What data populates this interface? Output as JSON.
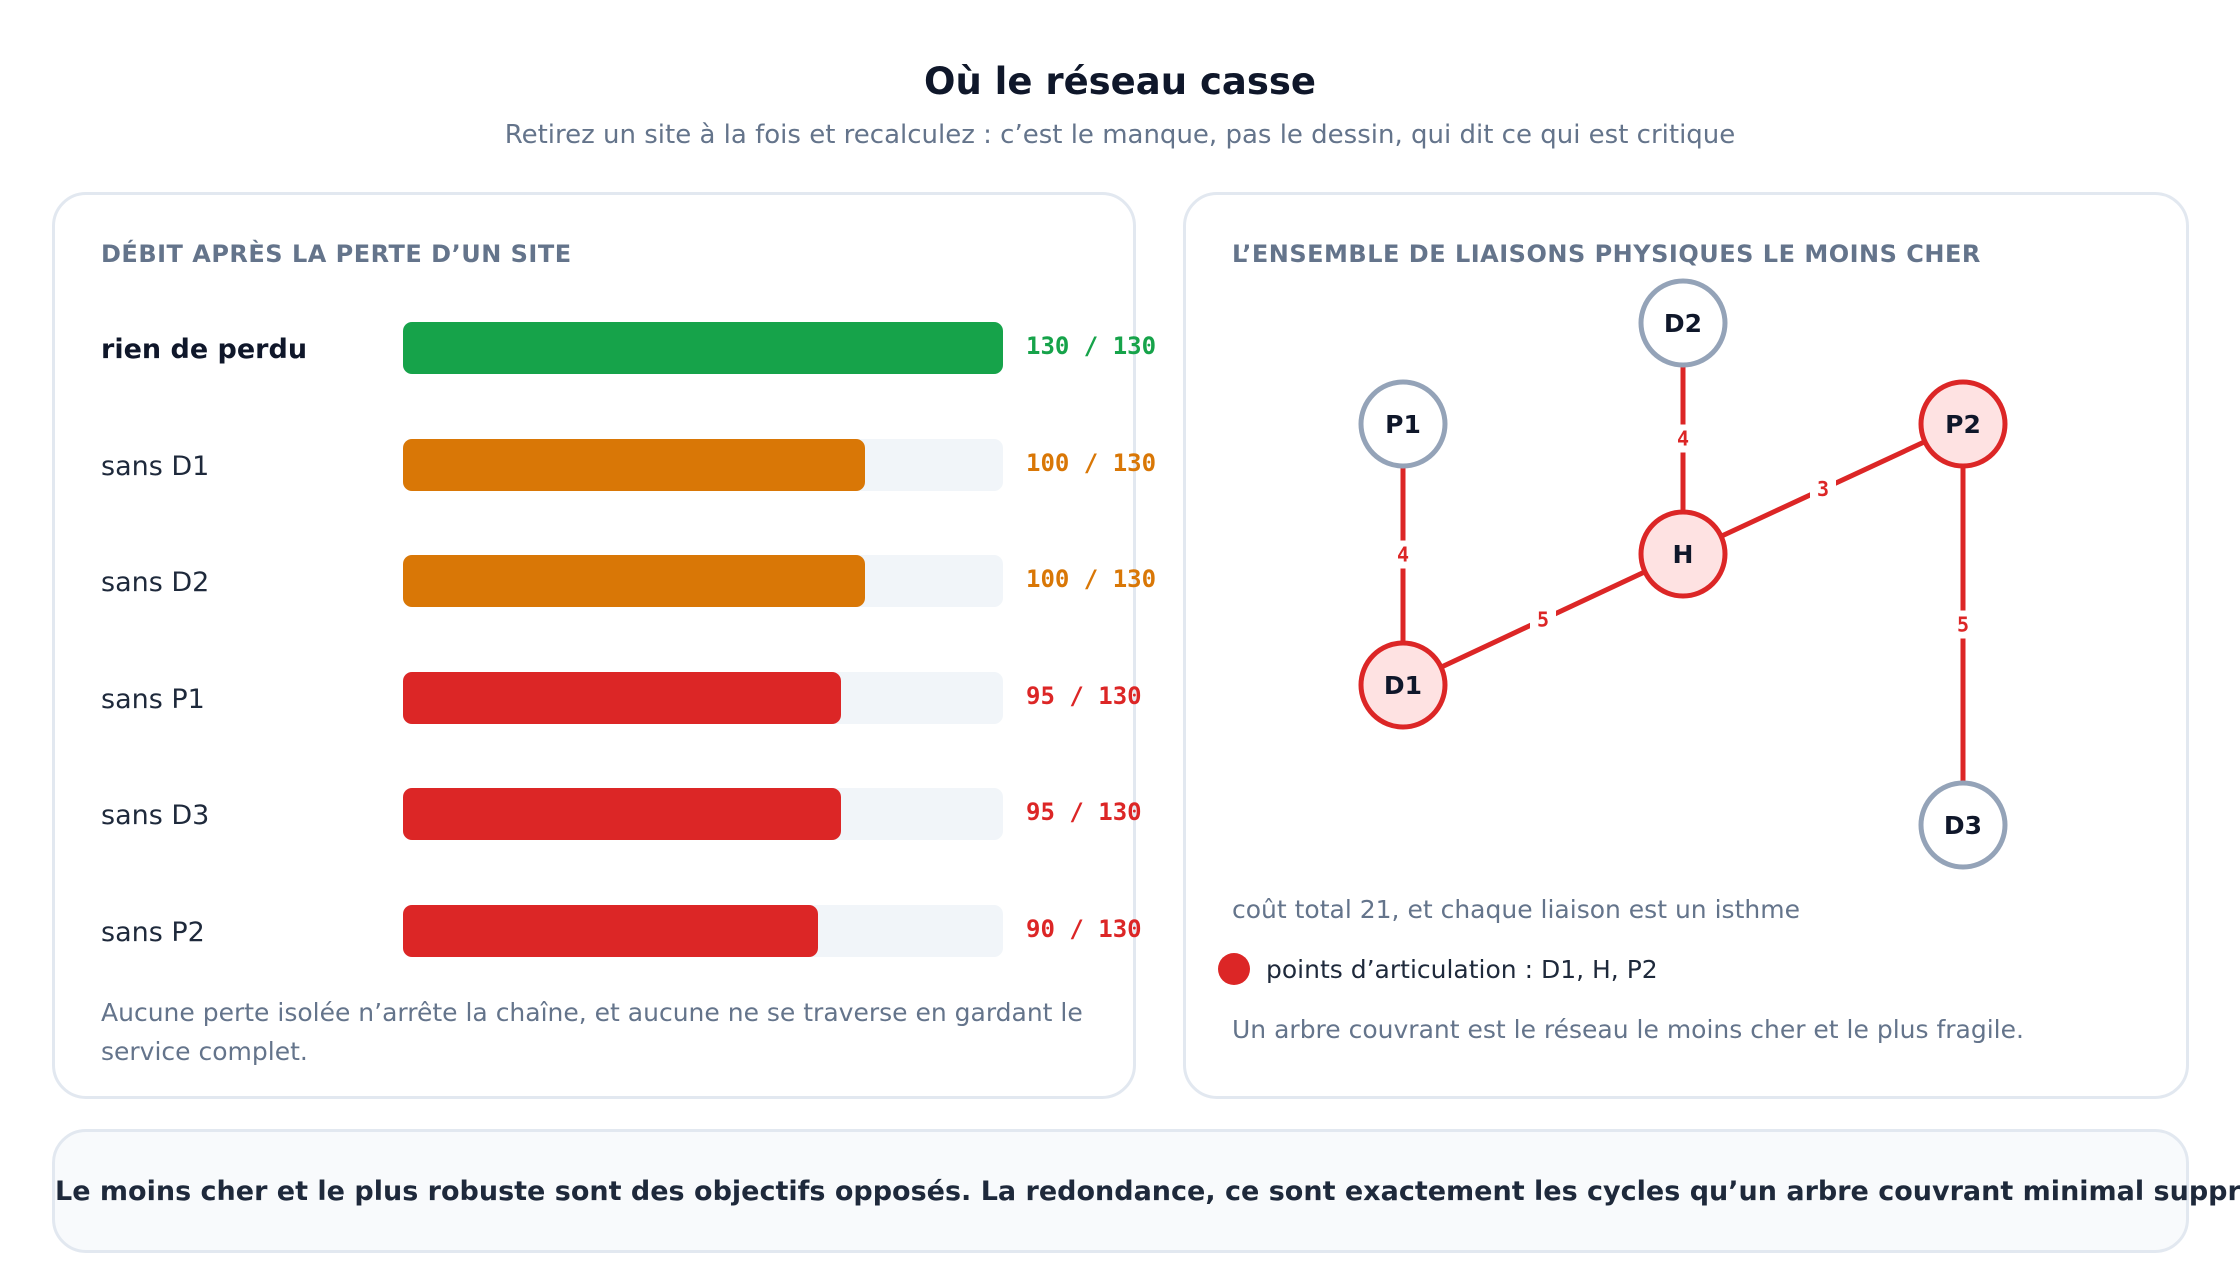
{
  "title": "Où le réseau casse",
  "subtitle": "Retirez un site à la fois et recalculez : c’est le manque, pas le dessin, qui dit ce qui est critique",
  "colors": {
    "green": "#16a34a",
    "orange": "#d97706",
    "red": "#dc2626",
    "grey_node": "#94a3b8",
    "track": "#f1f5f9",
    "critical_fill": "#fee2e2"
  },
  "left_panel": {
    "heading": "DÉBIT APRÈS LA PERTE D’UN SITE",
    "note": "Aucune perte isolée n’arrête la chaîne, et aucune ne se traverse en gardant le service complet."
  },
  "right_panel": {
    "heading": "L’ENSEMBLE DE LIAISONS PHYSIQUES LE MOINS CHER",
    "total_note": "coût total 21, et chaque liaison est un isthme",
    "legend": "points d’articulation : D1, H, P2",
    "note": "Un arbre couvrant est le réseau le moins cher et le plus fragile."
  },
  "footer": {
    "text": "Le moins cher et le plus robuste sont des objectifs opposés. La redondance, ce sont exactement les cycles qu’un arbre couvrant minimal supprime."
  },
  "chart_data": [
    {
      "type": "bar",
      "orientation": "horizontal",
      "max": 130,
      "bars": [
        {
          "label": "rien de perdu",
          "value": 130,
          "text": "130 / 130",
          "color": "green",
          "emphasis": true
        },
        {
          "label": "sans D1",
          "value": 100,
          "text": "100 / 130",
          "color": "orange"
        },
        {
          "label": "sans D2",
          "value": 100,
          "text": "100 / 130",
          "color": "orange"
        },
        {
          "label": "sans P1",
          "value": 95,
          "text": "95 / 130",
          "color": "red"
        },
        {
          "label": "sans D3",
          "value": 95,
          "text": "95 / 130",
          "color": "red"
        },
        {
          "label": "sans P2",
          "value": 90,
          "text": "90 / 130",
          "color": "red"
        }
      ]
    },
    {
      "type": "network",
      "nodes": [
        {
          "id": "P1",
          "critical": false
        },
        {
          "id": "D2",
          "critical": false
        },
        {
          "id": "P2",
          "critical": true
        },
        {
          "id": "H",
          "critical": true
        },
        {
          "id": "D1",
          "critical": true
        },
        {
          "id": "D3",
          "critical": false
        }
      ],
      "edges": [
        {
          "from": "P1",
          "to": "D1",
          "weight": 4
        },
        {
          "from": "D2",
          "to": "H",
          "weight": 4
        },
        {
          "from": "D1",
          "to": "H",
          "weight": 5
        },
        {
          "from": "H",
          "to": "P2",
          "weight": 3
        },
        {
          "from": "P2",
          "to": "D3",
          "weight": 5
        }
      ]
    }
  ]
}
